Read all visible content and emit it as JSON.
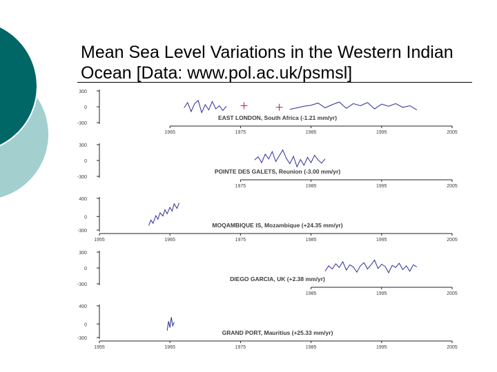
{
  "slide": {
    "title": "Mean Sea Level Variations in the Western Indian Ocean [Data: www.pol.ac.uk/psmsl]",
    "colors": {
      "accent_dark": "#006666",
      "accent_light": "#a3cfcf",
      "series": "#2a2a9a",
      "gap_marks": "#b02040",
      "text": "#3c3c3c",
      "axis": "#222222"
    }
  },
  "chart_data": [
    {
      "type": "line",
      "label": "EAST LONDON, South Africa (-1.21 mm/yr)",
      "yticks": [
        300,
        0,
        -300
      ],
      "ylim": [
        -300,
        300
      ],
      "xticks": [
        1965,
        1975,
        1985,
        1995,
        2005
      ],
      "xtick_labels": [
        "1965",
        "1975",
        "1985",
        "1995",
        "2005"
      ],
      "xlim": [
        1955,
        2005
      ],
      "series": [
        {
          "x": [
            1967,
            1967.5,
            1968,
            1968.5,
            1969,
            1969.5,
            1970,
            1970.5,
            1971,
            1971.5,
            1972,
            1972.5,
            1973
          ],
          "y": [
            -20,
            80,
            -90,
            60,
            120,
            -110,
            40,
            -60,
            100,
            -40,
            20,
            -70,
            10
          ]
        },
        {
          "x": [
            1982,
            1983,
            1984,
            1985,
            1986,
            1987,
            1988,
            1989,
            1990,
            1991,
            1992,
            1993,
            1994,
            1995,
            1996,
            1997,
            1998,
            1999,
            2000
          ],
          "y": [
            -50,
            -20,
            10,
            30,
            70,
            -20,
            40,
            90,
            -30,
            60,
            20,
            80,
            -40,
            50,
            10,
            60,
            -10,
            20,
            -60
          ]
        }
      ],
      "gap_marks": [
        {
          "x": 1975.5,
          "y": 20
        },
        {
          "x": 1980.5,
          "y": -10
        }
      ]
    },
    {
      "type": "line",
      "label": "POINTE DES GALETS, Reunion (-3.00 mm/yr)",
      "yticks": [
        300,
        0,
        -300
      ],
      "ylim": [
        -300,
        300
      ],
      "xticks": [
        1975,
        1985,
        1995,
        2005
      ],
      "xtick_labels": [
        "1975",
        "1985",
        "1995",
        "2005"
      ],
      "xlim": [
        1955,
        2005
      ],
      "series": [
        {
          "x": [
            1977,
            1977.5,
            1978,
            1978.5,
            1979,
            1979.5,
            1980,
            1980.5,
            1981,
            1981.5,
            1982,
            1982.5,
            1983,
            1983.5,
            1984,
            1984.5,
            1985,
            1985.5,
            1986,
            1986.5,
            1987
          ],
          "y": [
            10,
            70,
            -40,
            120,
            30,
            170,
            -20,
            90,
            200,
            40,
            -60,
            80,
            -120,
            20,
            -90,
            60,
            -40,
            100,
            10,
            -50,
            30
          ]
        }
      ]
    },
    {
      "type": "line",
      "label": "MOQAMBIQUE IS, Mozambique (+24.35 mm/yr)",
      "yticks": [
        400,
        0,
        -300
      ],
      "ylim": [
        -300,
        400
      ],
      "xticks": [
        1955,
        1965,
        1975,
        1985,
        1995,
        2005
      ],
      "xtick_labels": [
        "1955",
        "1965",
        "1975",
        "1985",
        "1995",
        "2005"
      ],
      "xlim": [
        1955,
        2005
      ],
      "series": [
        {
          "x": [
            1962,
            1962.3,
            1962.6,
            1963,
            1963.3,
            1963.6,
            1964,
            1964.3,
            1964.6,
            1965,
            1965.3,
            1965.6,
            1966,
            1966.3
          ],
          "y": [
            -200,
            -80,
            -150,
            20,
            -60,
            80,
            10,
            150,
            60,
            200,
            120,
            280,
            180,
            300
          ]
        }
      ]
    },
    {
      "type": "line",
      "label": "DIEGO GARCIA, UK (+2.38 mm/yr)",
      "yticks": [
        300,
        0,
        -300
      ],
      "ylim": [
        -300,
        300
      ],
      "xticks": [
        1985,
        1995,
        2005
      ],
      "xtick_labels": [
        "1985",
        "1995",
        "2005"
      ],
      "xlim": [
        1955,
        2005
      ],
      "series": [
        {
          "x": [
            1987,
            1987.5,
            1988,
            1988.5,
            1989,
            1989.5,
            1990,
            1990.5,
            1991,
            1991.5,
            1992,
            1992.5,
            1993,
            1993.5,
            1994,
            1994.5,
            1995,
            1995.5,
            1996,
            1996.5,
            1997,
            1997.5,
            1998,
            1998.5,
            1999,
            1999.5,
            2000
          ],
          "y": [
            -60,
            40,
            -20,
            80,
            10,
            120,
            -40,
            60,
            20,
            -80,
            40,
            100,
            -20,
            60,
            150,
            -10,
            70,
            30,
            -90,
            50,
            10,
            90,
            -30,
            40,
            -60,
            60,
            20
          ]
        }
      ]
    },
    {
      "type": "line",
      "label": "GRAND PORT, Mauritius (+25.33 mm/yr)",
      "yticks": [
        400,
        0,
        -300
      ],
      "ylim": [
        -300,
        400
      ],
      "xticks": [
        1955,
        1965,
        1975,
        1985,
        1995,
        2005
      ],
      "xtick_labels": [
        "1955",
        "1965",
        "1975",
        "1985",
        "1995",
        "2005"
      ],
      "xlim": [
        1955,
        2005
      ],
      "series": [
        {
          "x": [
            1964.6,
            1964.8,
            1965,
            1965.2,
            1965.4,
            1965.6
          ],
          "y": [
            -150,
            60,
            -80,
            150,
            -40,
            40
          ]
        }
      ]
    }
  ]
}
